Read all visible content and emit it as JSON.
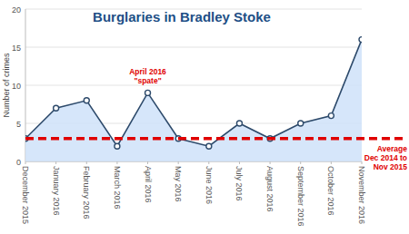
{
  "chart_data": {
    "type": "area",
    "title": "Burglaries in Bradley Stoke",
    "y_label": "Number of crimes",
    "categories": [
      "December 2015",
      "January 2016",
      "February 2016",
      "March 2016",
      "April 2016",
      "May 2016",
      "June 2016",
      "July 2016",
      "August 2016",
      "September 2016",
      "October 2016",
      "November 2016"
    ],
    "values": [
      3,
      7,
      8,
      2,
      9,
      3,
      2,
      5,
      3,
      5,
      6,
      16
    ],
    "color": "#2d4a6b",
    "marker": "circle",
    "ylim": [
      0,
      20
    ],
    "yticks": [
      0,
      5,
      10,
      15,
      20
    ],
    "grid": true,
    "annotations": [
      {
        "text": [
          "April 2016",
          "\"spate\""
        ],
        "category": "April 2016",
        "color": "#e00000"
      }
    ],
    "reference_line": {
      "value": 3,
      "label": [
        "Average",
        "Dec 2014 to",
        "Nov 2015"
      ],
      "color": "#e00000",
      "line_style": "dashed"
    }
  }
}
